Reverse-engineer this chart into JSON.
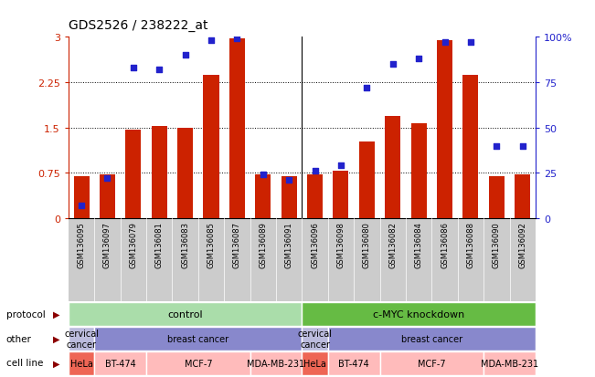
{
  "title": "GDS2526 / 238222_at",
  "samples": [
    "GSM136095",
    "GSM136097",
    "GSM136079",
    "GSM136081",
    "GSM136083",
    "GSM136085",
    "GSM136087",
    "GSM136089",
    "GSM136091",
    "GSM136096",
    "GSM136098",
    "GSM136080",
    "GSM136082",
    "GSM136084",
    "GSM136086",
    "GSM136088",
    "GSM136090",
    "GSM136092"
  ],
  "bar_values": [
    0.7,
    0.73,
    1.47,
    1.52,
    1.5,
    2.37,
    2.97,
    0.73,
    0.7,
    0.72,
    0.78,
    1.27,
    1.7,
    1.57,
    2.95,
    2.37,
    0.7,
    0.73
  ],
  "dot_values": [
    7,
    22,
    83,
    82,
    90,
    98,
    99,
    24,
    21,
    26,
    29,
    72,
    85,
    88,
    97,
    97,
    40,
    40
  ],
  "ylim_left": [
    0,
    3.0
  ],
  "ylim_right": [
    0,
    100
  ],
  "yticks_left": [
    0,
    0.75,
    1.5,
    2.25,
    3.0
  ],
  "yticks_right": [
    0,
    25,
    50,
    75,
    100
  ],
  "bar_color": "#CC2200",
  "dot_color": "#2222CC",
  "protocol_groups": [
    {
      "text": "control",
      "start": 0,
      "end": 9,
      "color": "#AADDAA"
    },
    {
      "text": "c-MYC knockdown",
      "start": 9,
      "end": 18,
      "color": "#66BB44"
    }
  ],
  "other_groups": [
    {
      "text": "cervical\ncancer",
      "start": 0,
      "end": 1,
      "color": "#BBBBDD"
    },
    {
      "text": "breast cancer",
      "start": 1,
      "end": 9,
      "color": "#8888CC"
    },
    {
      "text": "cervical\ncancer",
      "start": 9,
      "end": 10,
      "color": "#BBBBDD"
    },
    {
      "text": "breast cancer",
      "start": 10,
      "end": 18,
      "color": "#8888CC"
    }
  ],
  "cellline_groups": [
    {
      "text": "HeLa",
      "start": 0,
      "end": 1,
      "color": "#EE6655"
    },
    {
      "text": "BT-474",
      "start": 1,
      "end": 3,
      "color": "#FFBBBB"
    },
    {
      "text": "MCF-7",
      "start": 3,
      "end": 7,
      "color": "#FFBBBB"
    },
    {
      "text": "MDA-MB-231",
      "start": 7,
      "end": 9,
      "color": "#FFBBBB"
    },
    {
      "text": "HeLa",
      "start": 9,
      "end": 10,
      "color": "#EE6655"
    },
    {
      "text": "BT-474",
      "start": 10,
      "end": 12,
      "color": "#FFBBBB"
    },
    {
      "text": "MCF-7",
      "start": 12,
      "end": 16,
      "color": "#FFBBBB"
    },
    {
      "text": "MDA-MB-231",
      "start": 16,
      "end": 18,
      "color": "#FFBBBB"
    }
  ],
  "row_labels": [
    "protocol",
    "other",
    "cell line"
  ],
  "ticklabel_bg": "#CCCCCC",
  "legend_count_color": "#CC2200",
  "legend_dot_color": "#2222CC"
}
